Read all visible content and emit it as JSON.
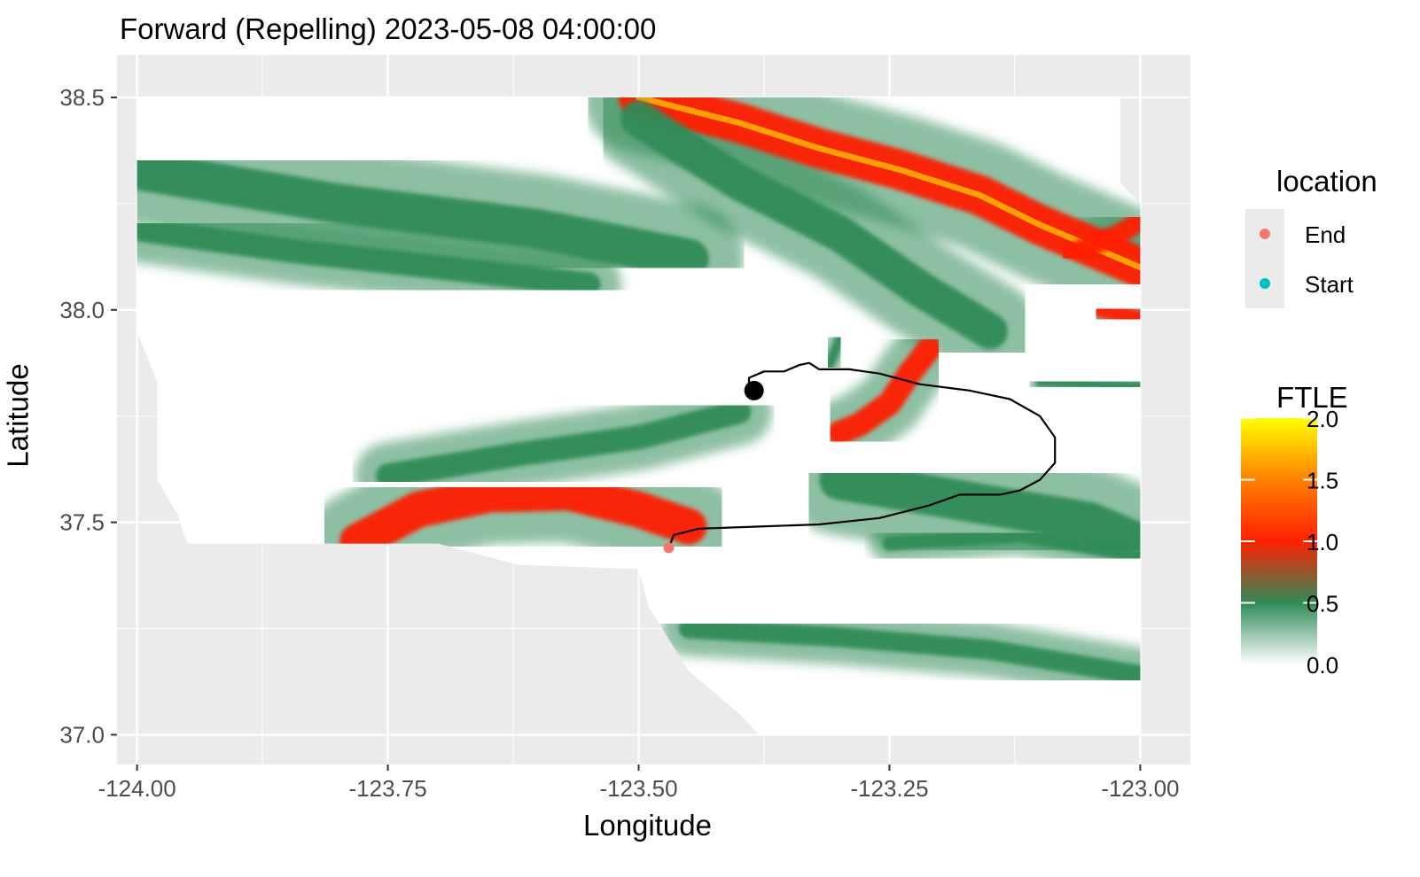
{
  "chart_data": {
    "type": "heatmap",
    "title": "Forward (Repelling) 2023-05-08 04:00:00",
    "xlabel": "Longitude",
    "ylabel": "Latitude",
    "xlim": [
      -124.02,
      -122.95
    ],
    "ylim": [
      36.93,
      38.6
    ],
    "x_ticks": [
      -124.0,
      -123.75,
      -123.5,
      -123.25,
      -123.0
    ],
    "x_tick_labels": [
      "-124.00",
      "-123.75",
      "-123.50",
      "-123.25",
      "-123.00"
    ],
    "y_ticks": [
      37.0,
      37.5,
      38.0,
      38.5
    ],
    "y_tick_labels": [
      "37.0",
      "37.5",
      "38.0",
      "38.5"
    ],
    "grid": true,
    "colors": {
      "panel": "#ebebeb",
      "gridline": "#ffffff",
      "ftle_low": "#ffffff",
      "ftle_mid": "#2e8b57",
      "ftle_high": "#ff2000",
      "ftle_max": "#ffff00",
      "end_point": "#f8766d",
      "start_point": "#00bfc4",
      "trajectory": "#000000"
    },
    "ftle_scale": {
      "title": "FTLE",
      "range": [
        0.0,
        2.0
      ],
      "breaks": [
        0.0,
        0.5,
        1.0,
        1.5,
        2.0
      ],
      "break_labels": [
        "0.0",
        "0.5",
        "1.0",
        "1.5",
        "2.0"
      ]
    },
    "location_legend": {
      "title": "location",
      "entries": [
        {
          "label": "End",
          "color": "#f8766d"
        },
        {
          "label": "Start",
          "color": "#00bfc4"
        }
      ]
    },
    "points": [
      {
        "name": "End",
        "lon": -123.47,
        "lat": 37.44
      },
      {
        "name": "current",
        "lon": -123.385,
        "lat": 37.81
      }
    ],
    "trajectory": [
      [
        -123.47,
        37.44
      ],
      [
        -123.465,
        37.47
      ],
      [
        -123.44,
        37.485
      ],
      [
        -123.38,
        37.49
      ],
      [
        -123.32,
        37.495
      ],
      [
        -123.26,
        37.51
      ],
      [
        -123.21,
        37.54
      ],
      [
        -123.18,
        37.565
      ],
      [
        -123.14,
        37.565
      ],
      [
        -123.12,
        37.575
      ],
      [
        -123.1,
        37.6
      ],
      [
        -123.085,
        37.64
      ],
      [
        -123.085,
        37.7
      ],
      [
        -123.1,
        37.75
      ],
      [
        -123.13,
        37.79
      ],
      [
        -123.17,
        37.81
      ],
      [
        -123.22,
        37.825
      ],
      [
        -123.26,
        37.85
      ],
      [
        -123.29,
        37.86
      ],
      [
        -123.32,
        37.86
      ],
      [
        -123.33,
        37.875
      ],
      [
        -123.34,
        37.87
      ],
      [
        -123.355,
        37.855
      ],
      [
        -123.375,
        37.855
      ],
      [
        -123.39,
        37.84
      ],
      [
        -123.39,
        37.81
      ]
    ],
    "ridges": [
      {
        "path": [
          [
            -123.78,
            37.455
          ],
          [
            -123.72,
            37.53
          ],
          [
            -123.65,
            37.565
          ],
          [
            -123.57,
            37.57
          ],
          [
            -123.5,
            37.53
          ],
          [
            -123.45,
            37.49
          ]
        ],
        "value": 1.25,
        "width": 0.045
      },
      {
        "path": [
          [
            -123.5,
            38.5
          ],
          [
            -123.4,
            38.44
          ],
          [
            -123.32,
            38.38
          ],
          [
            -123.24,
            38.33
          ],
          [
            -123.16,
            38.27
          ],
          [
            -123.1,
            38.2
          ],
          [
            -123.05,
            38.15
          ],
          [
            -123.0,
            38.1
          ]
        ],
        "value": 1.4,
        "width": 0.05
      },
      {
        "path": [
          [
            -123.07,
            38.13
          ],
          [
            -123.02,
            38.18
          ],
          [
            -123.0,
            38.21
          ]
        ],
        "value": 1.1,
        "width": 0.025
      },
      {
        "path": [
          [
            -123.04,
            38.0
          ],
          [
            -123.0,
            37.98
          ]
        ],
        "value": 1.1,
        "width": 0.02
      },
      {
        "path": [
          [
            -123.21,
            37.91
          ],
          [
            -123.23,
            37.85
          ],
          [
            -123.25,
            37.78
          ],
          [
            -123.28,
            37.73
          ],
          [
            -123.3,
            37.71
          ]
        ],
        "value": 1.1,
        "width": 0.03
      },
      {
        "path": [
          [
            -123.3,
            37.93
          ],
          [
            -123.31,
            37.87
          ]
        ],
        "value": 0.95,
        "width": 0.012
      },
      {
        "path": [
          [
            -124.0,
            38.19
          ],
          [
            -123.85,
            38.14
          ],
          [
            -123.7,
            38.1
          ],
          [
            -123.55,
            38.06
          ]
        ],
        "value": 0.7,
        "width": 0.03
      },
      {
        "path": [
          [
            -124.0,
            38.33
          ],
          [
            -123.8,
            38.25
          ],
          [
            -123.6,
            38.19
          ],
          [
            -123.45,
            38.12
          ]
        ],
        "value": 0.55,
        "width": 0.05
      },
      {
        "path": [
          [
            -123.75,
            37.61
          ],
          [
            -123.62,
            37.66
          ],
          [
            -123.5,
            37.7
          ],
          [
            -123.4,
            37.76
          ]
        ],
        "value": 0.6,
        "width": 0.03
      },
      {
        "path": [
          [
            -123.45,
            37.25
          ],
          [
            -123.3,
            37.23
          ],
          [
            -123.15,
            37.2
          ],
          [
            -123.0,
            37.14
          ]
        ],
        "value": 0.75,
        "width": 0.025
      },
      {
        "path": [
          [
            -123.25,
            37.45
          ],
          [
            -123.12,
            37.47
          ],
          [
            -123.0,
            37.42
          ]
        ],
        "value": 0.8,
        "width": 0.018
      },
      {
        "path": [
          [
            -123.3,
            37.6
          ],
          [
            -123.2,
            37.56
          ],
          [
            -123.05,
            37.5
          ],
          [
            -123.0,
            37.45
          ]
        ],
        "value": 0.5,
        "width": 0.05
      },
      {
        "path": [
          [
            -123.5,
            38.45
          ],
          [
            -123.4,
            38.3
          ],
          [
            -123.3,
            38.18
          ],
          [
            -123.22,
            38.05
          ],
          [
            -123.15,
            37.95
          ]
        ],
        "value": 0.55,
        "width": 0.045
      },
      {
        "path": [
          [
            -123.1,
            37.83
          ],
          [
            -123.0,
            37.82
          ]
        ],
        "value": 0.85,
        "width": 0.012
      }
    ],
    "ocean_region": [
      [
        -124.0,
        38.5
      ],
      [
        -123.02,
        38.5
      ],
      [
        -123.02,
        38.3
      ],
      [
        -123.0,
        38.25
      ],
      [
        -123.0,
        37.0
      ],
      [
        -123.38,
        37.0
      ],
      [
        -123.4,
        37.05
      ],
      [
        -123.45,
        37.15
      ],
      [
        -123.49,
        37.3
      ],
      [
        -123.5,
        37.39
      ],
      [
        -123.62,
        37.4
      ],
      [
        -123.7,
        37.45
      ],
      [
        -123.95,
        37.45
      ],
      [
        -123.96,
        37.52
      ],
      [
        -123.98,
        37.6
      ],
      [
        -123.98,
        37.83
      ],
      [
        -124.0,
        37.95
      ]
    ],
    "coastal_fill": [
      [
        -123.45,
        37.0
      ],
      [
        -123.38,
        37.0
      ],
      [
        -123.42,
        37.06
      ],
      [
        -123.46,
        37.04
      ]
    ]
  }
}
